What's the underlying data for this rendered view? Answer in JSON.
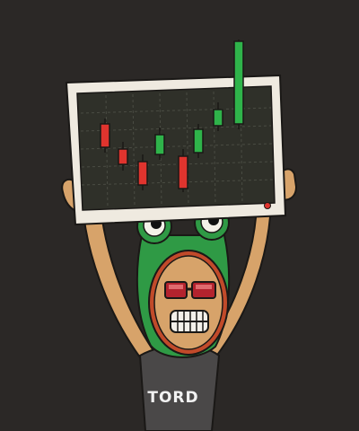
{
  "character": {
    "shirt_text": "TORD"
  },
  "colors": {
    "background": "#2b2826",
    "monitor_frame": "#efeae0",
    "monitor_screen": "#2f3029",
    "grid_line": "#4a4c43",
    "candle_up": "#2fb34a",
    "candle_down": "#e0342e",
    "frog_hood": "#2f9a45",
    "skin": "#d7a36a",
    "mouth_ring": "#c14a2a",
    "shades": "#b3232e",
    "shirt": "#4a4848",
    "outline": "#1a1816"
  },
  "icons": {
    "monitor": "monitor-icon",
    "power_led": "power-led-icon"
  },
  "candlesticks": [
    {
      "trend": "down"
    },
    {
      "trend": "down"
    },
    {
      "trend": "down"
    },
    {
      "trend": "up"
    },
    {
      "trend": "down"
    },
    {
      "trend": "up"
    },
    {
      "trend": "up"
    },
    {
      "trend": "up"
    }
  ]
}
